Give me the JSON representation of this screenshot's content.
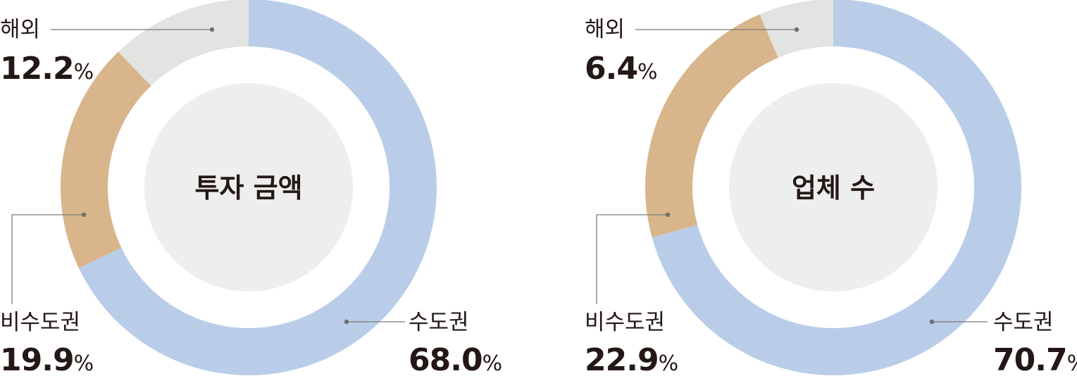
{
  "chart_data": [
    {
      "type": "pie",
      "title": "투자 금액",
      "unit": "%",
      "slices": [
        {
          "label": "수도권",
          "value": 68.0,
          "display": "68.0"
        },
        {
          "label": "비수도권",
          "value": 19.9,
          "display": "19.9"
        },
        {
          "label": "해외",
          "value": 12.2,
          "display": "12.2"
        }
      ]
    },
    {
      "type": "pie",
      "title": "업체 수",
      "unit": "%",
      "slices": [
        {
          "label": "수도권",
          "value": 70.7,
          "display": "70.7"
        },
        {
          "label": "비수도권",
          "value": 22.9,
          "display": "22.9"
        },
        {
          "label": "해외",
          "value": 6.4,
          "display": "6.4"
        }
      ]
    }
  ],
  "colors": {
    "수도권": "#b9cde8",
    "비수도권": "#d8b58b",
    "해외": "#e1e4e0",
    "center_fill": "#edeeed",
    "text": "#231815"
  }
}
